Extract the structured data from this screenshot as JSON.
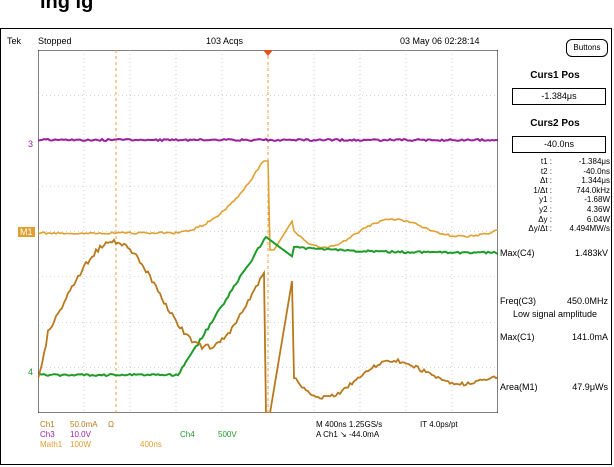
{
  "title": "ing ig",
  "topbar": {
    "brand": "Tek",
    "run_state": "Stopped",
    "acqs": "103 Acqs",
    "datetime": "03 May 06 02:28:14"
  },
  "panel": {
    "buttons_label": "Buttons",
    "curs1_title": "Curs1 Pos",
    "curs1_value": "-1.384μs",
    "curs2_title": "Curs2 Pos",
    "curs2_value": "-40.0ns",
    "readouts": [
      {
        "k": "t1 :",
        "v": "-1.384μs"
      },
      {
        "k": "t2 :",
        "v": "-40.0ns"
      },
      {
        "k": "Δt :",
        "v": "1.344μs"
      },
      {
        "k": "1/Δt :",
        "v": "744.0kHz"
      },
      {
        "k": "y1 :",
        "v": "-1.68W"
      },
      {
        "k": "y2 :",
        "v": "4.36W"
      },
      {
        "k": "Δy :",
        "v": "6.04W"
      },
      {
        "k": "Δy/Δt :",
        "v": "4.494MW/s"
      }
    ],
    "meas": [
      {
        "label": "Max(C4)",
        "value": "1.483kV"
      },
      {
        "label": "Freq(C3)",
        "value": "450.0MHz",
        "note": "Low signal amplitude"
      },
      {
        "label": "Max(C1)",
        "value": "141.0mA"
      },
      {
        "label": "Area(M1)",
        "value": "47.9μWs"
      }
    ]
  },
  "markers": {
    "ch3": "3",
    "m1": "M1",
    "ch4": "4"
  },
  "bottom": {
    "ch1": "Ch1",
    "ch1_scale": "50.0mA",
    "ch1_unit": "Ω",
    "ch3": "Ch3",
    "ch3_scale": "10.0V",
    "ch4": "Ch4",
    "ch4_scale": "500V",
    "math1": "Math1",
    "math1_scale": "100W",
    "math1_time": "400ns",
    "timebase": "M 400ns 1.25GS/s",
    "it": "IT 4.0ps/pt",
    "trigger": "A  Ch1  ↘  -44.0mA"
  },
  "colors": {
    "ch3": "#9b1fa0",
    "math1": "#e0a030",
    "ch1": "#b8791c",
    "ch4": "#1f9b2a",
    "cursor": "#e8a23a",
    "grid": "#b0b0b0",
    "trigger": "#e8501a"
  }
}
